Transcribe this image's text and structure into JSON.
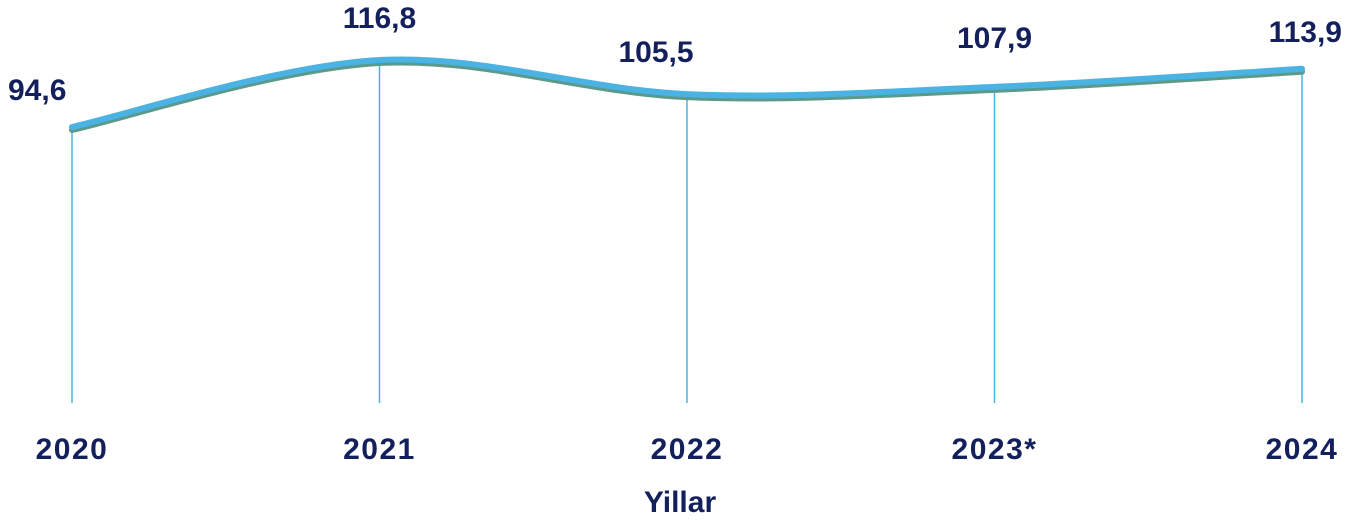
{
  "chart_data": {
    "type": "line",
    "x": [
      "2020",
      "2021",
      "2022",
      "2023*",
      "2024"
    ],
    "series": [
      {
        "values": [
          94.6,
          116.8,
          105.5,
          107.9,
          113.9
        ],
        "data_labels": [
          "94,6",
          "116,8",
          "105,5",
          "107,9",
          "113,9"
        ],
        "color": "#4bb3e4",
        "shadow_color": "#5b9a8b"
      }
    ],
    "xlabel": "Yillar",
    "ylabel": "",
    "grid": "vertical drop lines",
    "drop_line_color": "#4bb3e4",
    "text_color": "#14205c",
    "smooth": true
  }
}
